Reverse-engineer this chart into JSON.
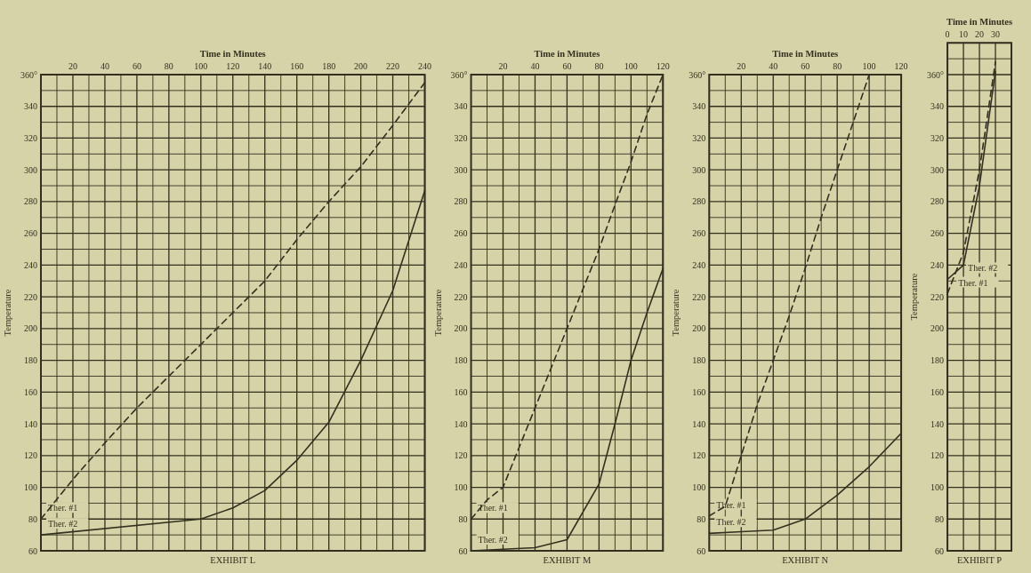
{
  "chart_data": [
    {
      "type": "line",
      "title": "EXHIBIT L",
      "xlabel": "Time in Minutes",
      "ylabel": "Temperature",
      "grid": true,
      "xlim": [
        0,
        240
      ],
      "xticks": [
        {
          "value": 0,
          "label": null
        },
        {
          "value": 10,
          "label": null
        },
        20,
        {
          "value": 30,
          "label": null
        },
        40,
        {
          "value": 50,
          "label": null
        },
        60,
        {
          "value": 70,
          "label": null
        },
        80,
        {
          "value": 90,
          "label": null
        },
        100,
        {
          "value": 110,
          "label": null
        },
        120,
        {
          "value": 130,
          "label": null
        },
        140,
        {
          "value": 150,
          "label": null
        },
        160,
        {
          "value": 170,
          "label": null
        },
        180,
        {
          "value": 190,
          "label": null
        },
        200,
        {
          "value": 210,
          "label": null
        },
        220,
        {
          "value": 230,
          "label": null
        },
        240
      ],
      "ylim": [
        60,
        360
      ],
      "yticks": [
        60,
        {
          "value": 70,
          "label": null
        },
        80,
        {
          "value": 90,
          "label": null
        },
        100,
        {
          "value": 110,
          "label": null
        },
        120,
        {
          "value": 130,
          "label": null
        },
        140,
        {
          "value": 150,
          "label": null
        },
        160,
        {
          "value": 170,
          "label": null
        },
        180,
        {
          "value": 190,
          "label": null
        },
        200,
        {
          "value": 210,
          "label": null
        },
        220,
        {
          "value": 230,
          "label": null
        },
        240,
        {
          "value": 250,
          "label": null
        },
        260,
        {
          "value": 270,
          "label": null
        },
        280,
        {
          "value": 290,
          "label": null
        },
        300,
        {
          "value": 310,
          "label": null
        },
        320,
        {
          "value": 330,
          "label": null
        },
        340,
        {
          "value": 350,
          "label": null
        },
        {
          "value": 360,
          "label": "360°"
        }
      ],
      "series": [
        {
          "name": "Ther. #1",
          "color": "#33301f",
          "line_style": "dashed",
          "x": [
            0,
            20,
            40,
            60,
            80,
            100,
            120,
            140,
            160,
            180,
            200,
            220,
            240
          ],
          "values": [
            80,
            105,
            128,
            150,
            170,
            190,
            210,
            230,
            256,
            280,
            302,
            328,
            355
          ]
        },
        {
          "name": "Ther. #2",
          "color": "#33301f",
          "line_style": "solid",
          "x": [
            0,
            100,
            120,
            140,
            160,
            180,
            200,
            220,
            240
          ],
          "values": [
            70,
            80,
            87,
            98,
            117,
            141,
            180,
            224,
            287
          ]
        }
      ]
    },
    {
      "type": "line",
      "title": "EXHIBIT M",
      "xlabel": "Time in Minutes",
      "ylabel": "Temperature",
      "grid": true,
      "xlim": [
        0,
        120
      ],
      "xticks": [
        {
          "value": 0,
          "label": null
        },
        {
          "value": 10,
          "label": null
        },
        20,
        {
          "value": 30,
          "label": null
        },
        40,
        {
          "value": 50,
          "label": null
        },
        60,
        {
          "value": 70,
          "label": null
        },
        80,
        {
          "value": 90,
          "label": null
        },
        100,
        {
          "value": 110,
          "label": null
        },
        120
      ],
      "ylim": [
        60,
        360
      ],
      "yticks": [
        60,
        {
          "value": 70,
          "label": null
        },
        80,
        {
          "value": 90,
          "label": null
        },
        100,
        {
          "value": 110,
          "label": null
        },
        120,
        {
          "value": 130,
          "label": null
        },
        140,
        {
          "value": 150,
          "label": null
        },
        160,
        {
          "value": 170,
          "label": null
        },
        180,
        {
          "value": 190,
          "label": null
        },
        200,
        {
          "value": 210,
          "label": null
        },
        220,
        {
          "value": 230,
          "label": null
        },
        240,
        {
          "value": 250,
          "label": null
        },
        260,
        {
          "value": 270,
          "label": null
        },
        280,
        {
          "value": 290,
          "label": null
        },
        300,
        {
          "value": 310,
          "label": null
        },
        320,
        {
          "value": 330,
          "label": null
        },
        340,
        {
          "value": 350,
          "label": null
        },
        {
          "value": 360,
          "label": "360°"
        }
      ],
      "series": [
        {
          "name": "Ther. #1",
          "color": "#33301f",
          "line_style": "dashed",
          "x": [
            0,
            10,
            20,
            30,
            40,
            50,
            60,
            70,
            80,
            90,
            100,
            110,
            120
          ],
          "values": [
            80,
            92,
            100,
            125,
            150,
            175,
            200,
            225,
            250,
            278,
            305,
            335,
            360
          ]
        },
        {
          "name": "Ther. #2",
          "color": "#33301f",
          "line_style": "solid",
          "x": [
            0,
            20,
            40,
            60,
            80,
            90,
            100,
            110,
            120
          ],
          "values": [
            60,
            61,
            62,
            67,
            102,
            140,
            180,
            210,
            238
          ]
        }
      ]
    },
    {
      "type": "line",
      "title": "EXHIBIT N",
      "xlabel": "Time in Minutes",
      "ylabel": "Temperature",
      "grid": true,
      "xlim": [
        0,
        120
      ],
      "xticks": [
        {
          "value": 0,
          "label": null
        },
        {
          "value": 10,
          "label": null
        },
        20,
        {
          "value": 30,
          "label": null
        },
        40,
        {
          "value": 50,
          "label": null
        },
        60,
        {
          "value": 70,
          "label": null
        },
        80,
        {
          "value": 90,
          "label": null
        },
        100,
        {
          "value": 110,
          "label": null
        },
        120
      ],
      "ylim": [
        60,
        360
      ],
      "yticks": [
        60,
        {
          "value": 70,
          "label": null
        },
        80,
        {
          "value": 90,
          "label": null
        },
        100,
        {
          "value": 110,
          "label": null
        },
        120,
        {
          "value": 130,
          "label": null
        },
        140,
        {
          "value": 150,
          "label": null
        },
        160,
        {
          "value": 170,
          "label": null
        },
        180,
        {
          "value": 190,
          "label": null
        },
        200,
        {
          "value": 210,
          "label": null
        },
        220,
        {
          "value": 230,
          "label": null
        },
        240,
        {
          "value": 250,
          "label": null
        },
        260,
        {
          "value": 270,
          "label": null
        },
        280,
        {
          "value": 290,
          "label": null
        },
        300,
        {
          "value": 310,
          "label": null
        },
        320,
        {
          "value": 330,
          "label": null
        },
        340,
        {
          "value": 350,
          "label": null
        },
        {
          "value": 360,
          "label": "360°"
        }
      ],
      "series": [
        {
          "name": "Ther. #1",
          "color": "#33301f",
          "line_style": "dashed",
          "x": [
            0,
            10,
            20,
            30,
            40,
            50,
            60,
            70,
            80,
            90,
            100
          ],
          "values": [
            82,
            88,
            120,
            152,
            180,
            208,
            238,
            270,
            300,
            330,
            360
          ]
        },
        {
          "name": "Ther. #2",
          "color": "#33301f",
          "line_style": "solid",
          "x": [
            0,
            20,
            40,
            60,
            80,
            100,
            120
          ],
          "values": [
            71,
            72,
            73,
            80,
            95,
            113,
            134
          ]
        }
      ]
    },
    {
      "type": "line",
      "title": "EXHIBIT P",
      "xlabel": "Time in Minutes",
      "ylabel": "Temperature",
      "grid": true,
      "xlim": [
        0,
        40
      ],
      "xticks": [
        0,
        10,
        20,
        30,
        {
          "value": 40,
          "label": null
        }
      ],
      "ylim": [
        60,
        380
      ],
      "yticks": [
        60,
        {
          "value": 70,
          "label": null
        },
        80,
        {
          "value": 90,
          "label": null
        },
        100,
        {
          "value": 110,
          "label": null
        },
        120,
        {
          "value": 130,
          "label": null
        },
        140,
        {
          "value": 150,
          "label": null
        },
        160,
        {
          "value": 170,
          "label": null
        },
        180,
        {
          "value": 190,
          "label": null
        },
        200,
        {
          "value": 210,
          "label": null
        },
        220,
        {
          "value": 230,
          "label": null
        },
        240,
        {
          "value": 250,
          "label": null
        },
        260,
        {
          "value": 270,
          "label": null
        },
        280,
        {
          "value": 290,
          "label": null
        },
        300,
        {
          "value": 310,
          "label": null
        },
        320,
        {
          "value": 330,
          "label": null
        },
        340,
        {
          "value": 350,
          "label": null
        },
        {
          "value": 360,
          "label": "360°"
        },
        {
          "value": 370,
          "label": null
        },
        {
          "value": 380,
          "label": null
        }
      ],
      "series": [
        {
          "name": "Ther. #1",
          "color": "#33301f",
          "line_style": "dashed",
          "x": [
            0,
            10,
            20,
            30
          ],
          "values": [
            222,
            248,
            300,
            368
          ]
        },
        {
          "name": "Ther. #2",
          "color": "#33301f",
          "line_style": "solid",
          "x": [
            0,
            10,
            20,
            30
          ],
          "values": [
            231,
            240,
            290,
            362
          ]
        }
      ]
    }
  ]
}
